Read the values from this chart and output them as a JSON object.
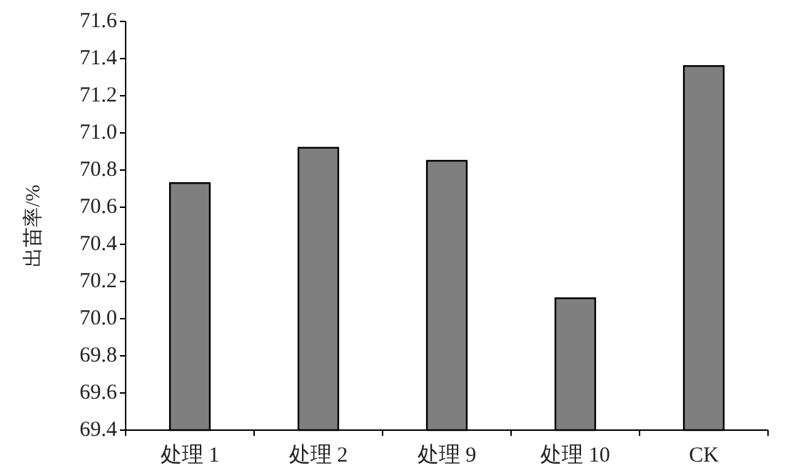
{
  "chart_data": {
    "type": "bar",
    "ylabel": "出苗率/%",
    "categories": [
      "处理 1",
      "处理 2",
      "处理 9",
      "处理 10",
      "CK"
    ],
    "values": [
      70.73,
      70.92,
      70.85,
      70.11,
      71.36
    ],
    "color": "#7f7f7f",
    "ylim": [
      69.4,
      71.6
    ],
    "yticks": [
      {
        "value": 69.4,
        "label": "69.4"
      },
      {
        "value": 69.6,
        "label": "69.6"
      },
      {
        "value": 69.8,
        "label": "69.8"
      },
      {
        "value": 70.0,
        "label": "70.0"
      },
      {
        "value": 70.2,
        "label": "70.2"
      },
      {
        "value": 70.4,
        "label": "70.4"
      },
      {
        "value": 70.6,
        "label": "70.6"
      },
      {
        "value": 70.8,
        "label": "70.8"
      },
      {
        "value": 71.0,
        "label": "71.0"
      },
      {
        "value": 71.2,
        "label": "71.2"
      },
      {
        "value": 71.4,
        "label": "71.4"
      },
      {
        "value": 71.6,
        "label": "71.6"
      }
    ],
    "grid": false
  }
}
